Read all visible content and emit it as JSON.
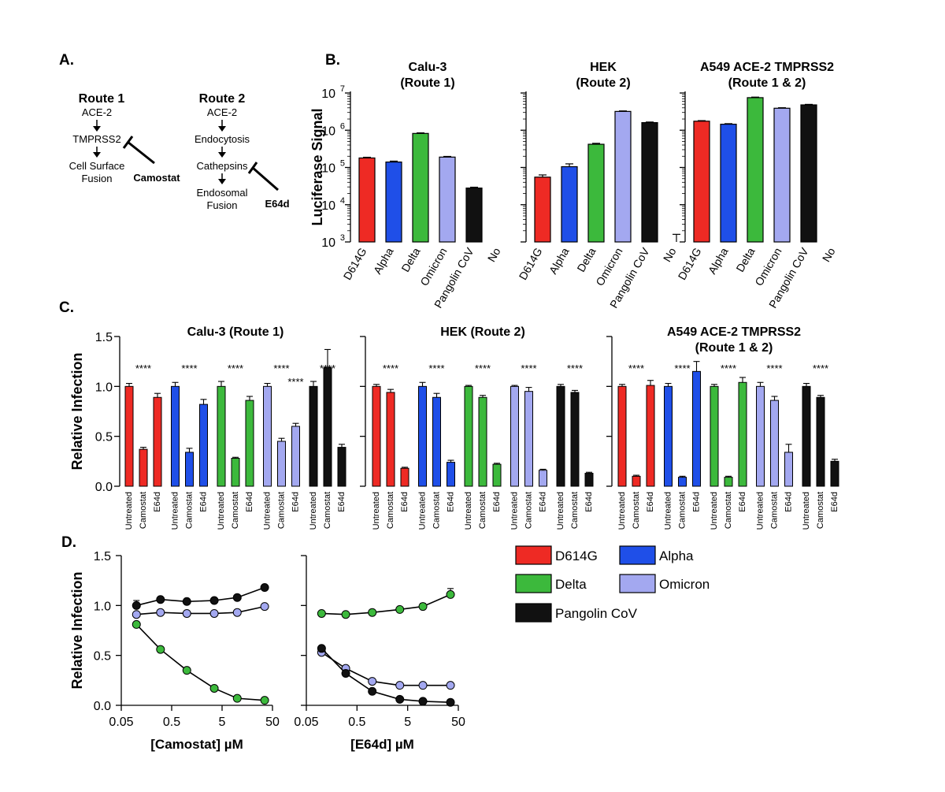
{
  "panel_labels": {
    "a": "A.",
    "b": "B.",
    "c": "C.",
    "d": "D."
  },
  "colors": {
    "D614G": "#ee2a24",
    "Alpha": "#1f4fe8",
    "Delta": "#3cb93c",
    "Omicron": "#a3a8f0",
    "Pangolin CoV": "#111111"
  },
  "diagram": {
    "route1": {
      "title": "Route 1",
      "steps": [
        "ACE-2",
        "TMPRSS2",
        "Cell Surface",
        "Fusion"
      ],
      "inhibitor": "Camostat"
    },
    "route2": {
      "title": "Route 2",
      "steps": [
        "ACE-2",
        "Endocytosis",
        "Cathepsins",
        "Endosomal",
        "Fusion"
      ],
      "inhibitor": "E64d"
    }
  },
  "chart_data": [
    {
      "id": "B",
      "type": "bar",
      "scale": "log",
      "ylabel": "Luciferase Signal",
      "ylim": [
        1000,
        10000000
      ],
      "yticks": [
        {
          "base": "10",
          "exp": "3"
        },
        {
          "base": "10",
          "exp": "4"
        },
        {
          "base": "10",
          "exp": "5"
        },
        {
          "base": "10",
          "exp": "6"
        },
        {
          "base": "10",
          "exp": "7"
        }
      ],
      "categories": [
        "D614G",
        "Alpha",
        "Delta",
        "Omicron",
        "Pangolin CoV",
        "No"
      ],
      "panels": [
        {
          "title": [
            "Calu-3",
            "(Route 1)"
          ],
          "values": [
            180000,
            140000,
            820000,
            190000,
            28000,
            null
          ],
          "errors": [
            8000,
            8000,
            30000,
            8000,
            1500,
            null
          ]
        },
        {
          "title": [
            "HEK",
            "(Route 2)"
          ],
          "values": [
            55000,
            105000,
            420000,
            3200000,
            1600000,
            1000
          ],
          "errors": [
            8000,
            20000,
            25000,
            100000,
            60000,
            600
          ]
        },
        {
          "title": [
            "A549 ACE-2 TMPRSS2",
            "(Route 1 & 2)"
          ],
          "values": [
            1750000,
            1450000,
            7500000,
            3900000,
            4800000,
            null
          ],
          "errors": [
            60000,
            50000,
            250000,
            120000,
            150000,
            null
          ]
        }
      ]
    },
    {
      "id": "C",
      "type": "bar",
      "ylabel": "Relative Infection",
      "ylim": [
        0,
        1.5
      ],
      "yticks": [
        "0.0",
        "0.5",
        "1.0",
        "1.5"
      ],
      "treatments": [
        "Untreated",
        "Camostat",
        "E64d"
      ],
      "variants": [
        "D614G",
        "Alpha",
        "Delta",
        "Omicron",
        "Pangolin CoV"
      ],
      "significance": "****",
      "panels": [
        {
          "title": [
            "Calu-3 (Route 1)"
          ],
          "values": [
            [
              1.0,
              0.37,
              0.89
            ],
            [
              1.0,
              0.34,
              0.82
            ],
            [
              1.0,
              0.28,
              0.86
            ],
            [
              1.0,
              0.45,
              0.6
            ],
            [
              1.0,
              1.19,
              0.39
            ]
          ],
          "errors": [
            [
              0.03,
              0.02,
              0.04
            ],
            [
              0.04,
              0.04,
              0.05
            ],
            [
              0.05,
              0.01,
              0.04
            ],
            [
              0.03,
              0.03,
              0.03
            ],
            [
              0.05,
              0.18,
              0.03
            ]
          ],
          "stars": [
            "****",
            "****",
            "****",
            "****",
            "****",
            "****"
          ]
        },
        {
          "title": [
            "HEK (Route 2)"
          ],
          "values": [
            [
              1.0,
              0.94,
              0.18
            ],
            [
              1.0,
              0.89,
              0.24
            ],
            [
              1.0,
              0.89,
              0.22
            ],
            [
              1.0,
              0.95,
              0.16
            ],
            [
              1.0,
              0.94,
              0.13
            ]
          ],
          "errors": [
            [
              0.02,
              0.03,
              0.01
            ],
            [
              0.04,
              0.04,
              0.02
            ],
            [
              0.01,
              0.02,
              0.01
            ],
            [
              0.01,
              0.04,
              0.01
            ],
            [
              0.02,
              0.02,
              0.01
            ]
          ],
          "stars": [
            "****",
            "****",
            "****",
            "****",
            "****"
          ]
        },
        {
          "title": [
            "A549 ACE-2 TMPRSS2",
            "(Route 1 & 2)"
          ],
          "values": [
            [
              1.0,
              0.1,
              1.01
            ],
            [
              1.0,
              0.09,
              1.15
            ],
            [
              1.0,
              0.09,
              1.04
            ],
            [
              1.0,
              0.86,
              0.34
            ],
            [
              1.0,
              0.89,
              0.25
            ]
          ],
          "errors": [
            [
              0.02,
              0.01,
              0.05
            ],
            [
              0.03,
              0.01,
              0.1
            ],
            [
              0.02,
              0.01,
              0.05
            ],
            [
              0.04,
              0.04,
              0.08
            ],
            [
              0.03,
              0.02,
              0.02
            ]
          ],
          "stars": [
            "****",
            "****",
            "****",
            "****",
            "****"
          ]
        }
      ]
    },
    {
      "id": "D",
      "type": "line",
      "scale_x": "log",
      "ylabel": "Relative Infection",
      "ylim": [
        0,
        1.5
      ],
      "xlim": [
        0.05,
        50
      ],
      "yticks": [
        "0.0",
        "0.5",
        "1.0",
        "1.5"
      ],
      "xticks": [
        "0.05",
        "0.5",
        "5",
        "50"
      ],
      "x": [
        0.1,
        0.3,
        1,
        3.5,
        10,
        35
      ],
      "panels": [
        {
          "xlabel": "[Camostat] µM",
          "series": [
            {
              "name": "Pangolin CoV",
              "values": [
                1.0,
                1.06,
                1.04,
                1.05,
                1.08,
                1.18
              ],
              "errors": [
                0.05,
                0.02,
                0.02,
                0.02,
                0.02,
                0.02
              ]
            },
            {
              "name": "Omicron",
              "values": [
                0.91,
                0.93,
                0.92,
                0.92,
                0.93,
                0.99
              ],
              "errors": [
                0.02,
                0.01,
                0.01,
                0.01,
                0.01,
                0.01
              ]
            },
            {
              "name": "Delta",
              "values": [
                0.81,
                0.56,
                0.35,
                0.17,
                0.07,
                0.05
              ],
              "errors": [
                0.02,
                0.01,
                0.01,
                0.01,
                0.01,
                0.01
              ]
            }
          ]
        },
        {
          "xlabel": "[E64d] µM",
          "series": [
            {
              "name": "Delta",
              "values": [
                0.92,
                0.91,
                0.93,
                0.96,
                0.99,
                1.11
              ],
              "errors": [
                0.01,
                0.01,
                0.01,
                0.01,
                0.03,
                0.06
              ]
            },
            {
              "name": "Omicron",
              "values": [
                0.53,
                0.37,
                0.24,
                0.2,
                0.2,
                0.2
              ],
              "errors": [
                0.02,
                0.01,
                0.01,
                0.01,
                0.01,
                0.01
              ]
            },
            {
              "name": "Pangolin CoV",
              "values": [
                0.57,
                0.32,
                0.14,
                0.06,
                0.04,
                0.03
              ],
              "errors": [
                0.02,
                0.01,
                0.01,
                0.01,
                0.01,
                0.01
              ]
            }
          ]
        }
      ],
      "legend": [
        "D614G",
        "Alpha",
        "Delta",
        "Omicron",
        "Pangolin CoV"
      ]
    }
  ]
}
